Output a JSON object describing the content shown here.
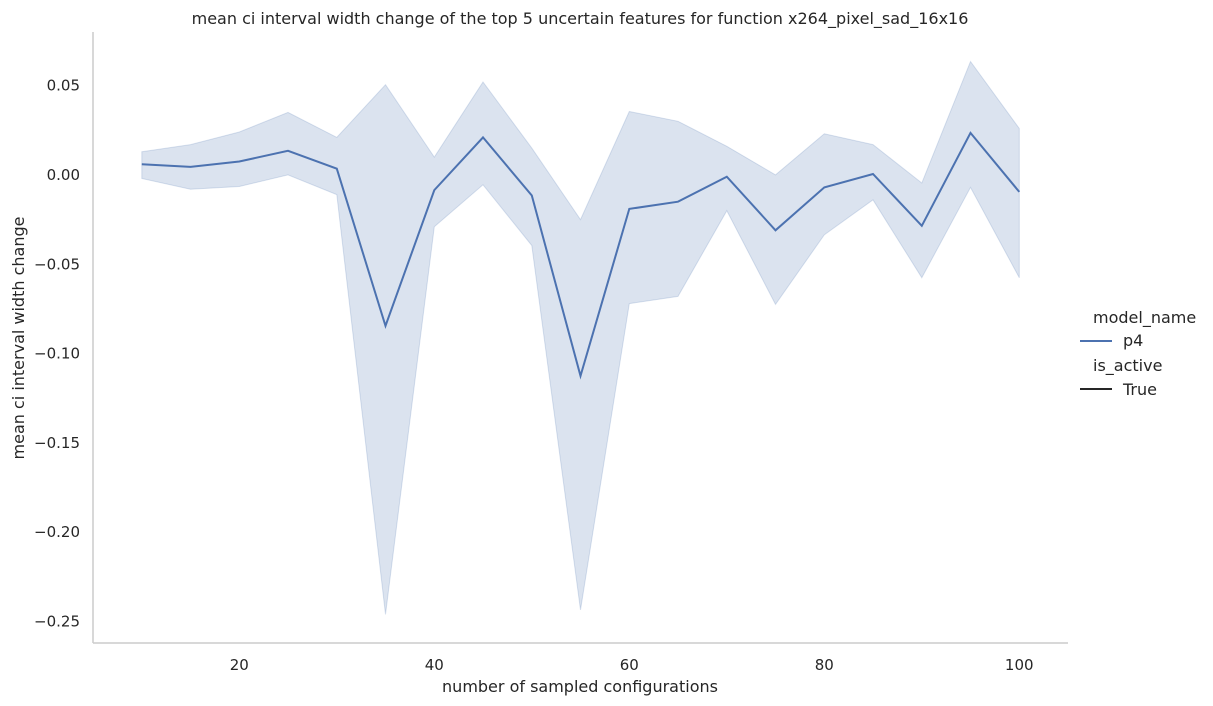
{
  "chart_data": {
    "type": "line",
    "title": "mean ci interval width change of the top 5 uncertain features for function x264_pixel_sad_16x16",
    "xlabel": "number of sampled configurations",
    "ylabel": "mean ci interval width change",
    "xlim": [
      5,
      105
    ],
    "ylim": [
      -0.262,
      0.08
    ],
    "xticks": [
      20,
      40,
      60,
      80,
      100
    ],
    "yticks": [
      0.05,
      0.0,
      -0.05,
      -0.1,
      -0.15,
      -0.2,
      -0.25
    ],
    "ytick_labels": [
      "0.05",
      "0.00",
      "−0.05",
      "−0.10",
      "−0.15",
      "−0.20",
      "−0.25"
    ],
    "grid": false,
    "legend_position": "right",
    "legend": {
      "model_name_title": "model_name",
      "model_name_entry": "p4",
      "is_active_title": "is_active",
      "is_active_entry": "True"
    },
    "series": [
      {
        "name": "p4",
        "color": "#4c72b0",
        "x": [
          10,
          15,
          20,
          25,
          30,
          35,
          40,
          45,
          50,
          55,
          60,
          65,
          70,
          75,
          80,
          85,
          90,
          95,
          100
        ],
        "y": [
          0.006,
          0.0045,
          0.0075,
          0.0135,
          0.0035,
          -0.0845,
          -0.0085,
          0.021,
          -0.0115,
          -0.1125,
          -0.019,
          -0.015,
          -0.001,
          -0.031,
          -0.007,
          0.0005,
          -0.0285,
          0.0235,
          -0.0095
        ],
        "ci_lower": [
          -0.002,
          -0.008,
          -0.0065,
          0.0,
          -0.011,
          -0.246,
          -0.029,
          -0.0055,
          -0.0395,
          -0.2435,
          -0.072,
          -0.068,
          -0.02,
          -0.0725,
          -0.0335,
          -0.014,
          -0.0575,
          -0.007,
          -0.0575
        ],
        "ci_upper": [
          0.013,
          0.017,
          0.024,
          0.035,
          0.021,
          0.0505,
          0.01,
          0.052,
          0.015,
          -0.025,
          0.0355,
          0.03,
          0.016,
          0.0,
          0.023,
          0.017,
          -0.0045,
          0.0635,
          0.026
        ]
      }
    ],
    "band_color": "#4c72b0",
    "axis_color": "#cccccc",
    "text_color": "#262626"
  }
}
